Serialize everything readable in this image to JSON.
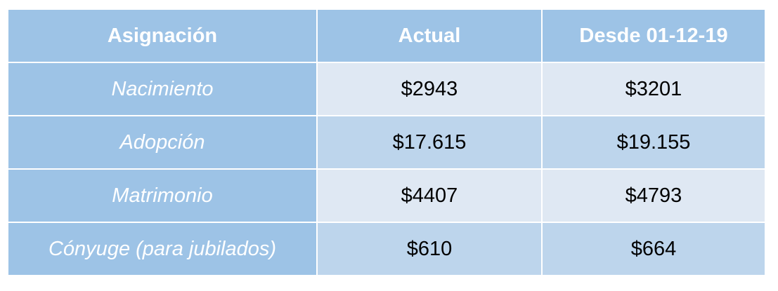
{
  "table": {
    "header": [
      "Asignación",
      "Actual",
      "Desde 01-12-19"
    ],
    "rows": [
      [
        "Nacimiento",
        "$2943",
        "$3201"
      ],
      [
        "Adopción",
        "$17.615",
        "$19.155"
      ],
      [
        "Matrimonio",
        "$4407",
        "$4793"
      ],
      [
        "Cónyuge (para jubilados)",
        "$610",
        "$664"
      ]
    ]
  }
}
